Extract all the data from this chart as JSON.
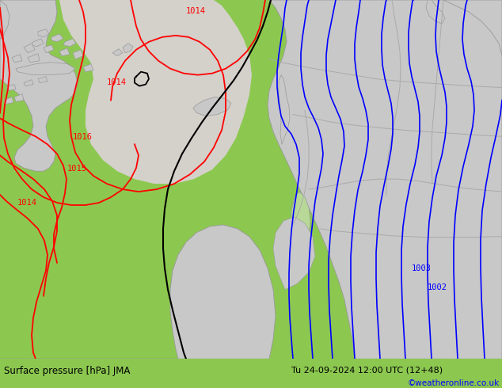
{
  "title_left": "Surface pressure [hPa] JMA",
  "title_right": "Tu 24-09-2024 12:00 UTC (12+48)",
  "copyright": "©weatheronline.co.uk",
  "bg_color": "#8cc850",
  "land_color": "#c8c8c8",
  "land_edge": "#999999",
  "sea_gray": "#d0cdc8",
  "bottom_bar_color": "#b8dc78",
  "figsize": [
    6.34,
    4.9
  ],
  "dpi": 100
}
